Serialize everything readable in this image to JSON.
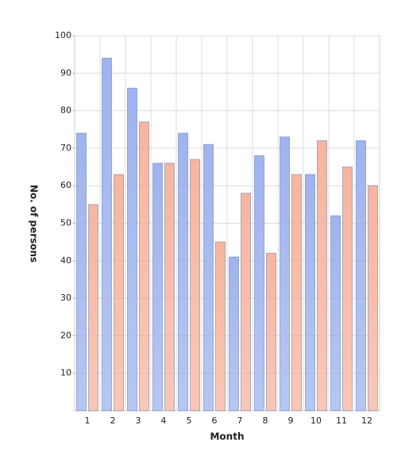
{
  "chart_data": {
    "type": "bar",
    "x_label": "Month",
    "y_label": "No. of persons",
    "categories": [
      "1",
      "2",
      "3",
      "4",
      "5",
      "6",
      "7",
      "8",
      "9",
      "10",
      "11",
      "12"
    ],
    "series": [
      {
        "color": "#9fb4ee",
        "values": [
          74,
          94,
          86,
          66,
          74,
          71,
          41,
          68,
          73,
          63,
          52,
          72
        ]
      },
      {
        "color": "#f7b59f",
        "values": [
          55,
          63,
          77,
          66,
          67,
          45,
          58,
          42,
          63,
          72,
          65,
          60
        ]
      }
    ],
    "ylim": [
      0,
      100
    ],
    "yticks": [
      10,
      20,
      30,
      40,
      50,
      60,
      70,
      80,
      90,
      100
    ],
    "grid": true
  }
}
